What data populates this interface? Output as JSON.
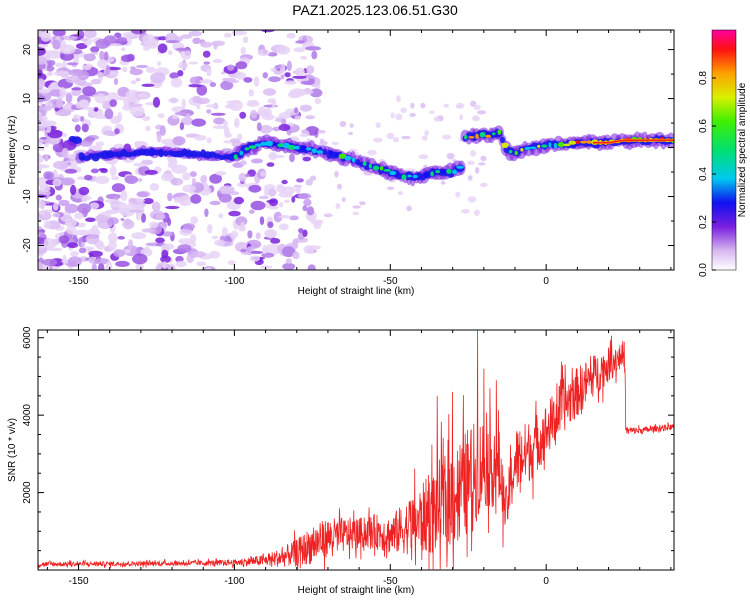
{
  "title": "PAZ1.2025.123.06.51.G30",
  "chart_data": [
    {
      "type": "heatmap",
      "xlabel": "Height of straight line (km)",
      "ylabel": "Frequency (Hz)",
      "xlim": [
        -163,
        41
      ],
      "ylim": [
        -25,
        24
      ],
      "xticks": [
        -150,
        -100,
        -50,
        0
      ],
      "yticks": [
        -20,
        -10,
        0,
        10,
        20
      ],
      "grid": false,
      "ridge": {
        "x": [
          -150,
          -140,
          -130,
          -120,
          -110,
          -100,
          -95,
          -90,
          -85,
          -80,
          -75,
          -70,
          -65,
          -60,
          -55,
          -50,
          -45,
          -40,
          -35,
          -30,
          -27,
          -26,
          -22,
          -18,
          -15,
          -13,
          -12,
          -10,
          -5,
          0,
          5,
          10,
          15,
          20,
          25,
          30,
          35,
          41
        ],
        "y": [
          -2,
          -1.5,
          -1,
          -1,
          -1.5,
          -2,
          0,
          1,
          0.5,
          0,
          -0.5,
          -1,
          -2,
          -3,
          -4,
          -5,
          -6,
          -6,
          -5,
          -5,
          -4,
          2,
          2.5,
          2.5,
          3,
          0,
          -1,
          -1,
          0,
          0.5,
          0.5,
          1,
          1,
          1,
          1.5,
          1.5,
          1.5,
          1.5
        ]
      },
      "colorbar": {
        "label": "Normalized spectral amplitude",
        "range": [
          0,
          1
        ],
        "ticks": [
          0.0,
          0.2,
          0.4,
          0.6,
          0.8
        ]
      }
    },
    {
      "type": "line",
      "xlabel": "Height of straight line (km)",
      "ylabel": "SNR (10 * v/v)",
      "xlim": [
        -163,
        41
      ],
      "ylim": [
        0,
        6200
      ],
      "xticks": [
        -150,
        -100,
        -50,
        0
      ],
      "yticks": [
        2000,
        4000,
        6000
      ],
      "grid": false,
      "series": [
        {
          "color": "#ee2222",
          "x": [
            -163,
            -140,
            -120,
            -100,
            -90,
            -85,
            -80,
            -75,
            -70,
            -65,
            -60,
            -55,
            -50,
            -45,
            -40,
            -35,
            -30,
            -25,
            -22,
            -20,
            -15,
            -13,
            -10,
            -5,
            0,
            5,
            10,
            15,
            20,
            25,
            26,
            30,
            35,
            41
          ],
          "base": [
            150,
            160,
            170,
            190,
            250,
            320,
            450,
            650,
            850,
            900,
            950,
            1000,
            900,
            1100,
            1300,
            1600,
            1900,
            2300,
            2600,
            2800,
            2600,
            1500,
            2800,
            3100,
            3600,
            4200,
            4600,
            5000,
            5300,
            5600,
            3600,
            3600,
            3650,
            3700
          ],
          "noise": [
            60,
            60,
            60,
            80,
            150,
            250,
            350,
            500,
            500,
            450,
            400,
            450,
            500,
            700,
            900,
            1200,
            1300,
            1400,
            1300,
            1200,
            1000,
            600,
            900,
            800,
            700,
            700,
            650,
            550,
            450,
            350,
            100,
            90,
            80,
            80
          ],
          "peaks": [
            {
              "x": -22,
              "y": 6200
            },
            {
              "x": -20,
              "y": 5200
            },
            {
              "x": -30,
              "y": 4600
            },
            {
              "x": -35,
              "y": 4500
            },
            {
              "x": -16,
              "y": 4900
            },
            {
              "x": 25,
              "y": 5900
            }
          ]
        }
      ]
    }
  ]
}
